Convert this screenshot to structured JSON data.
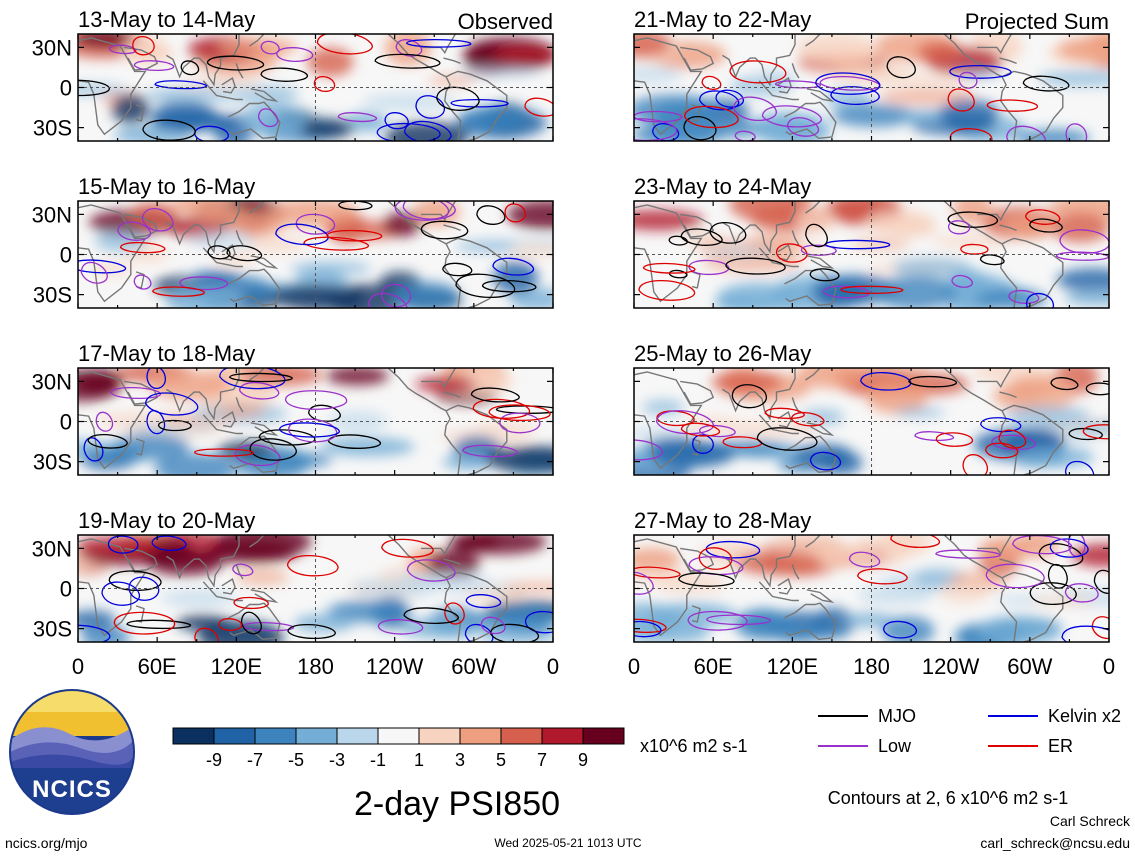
{
  "chart_data": {
    "type": "heatmap",
    "title": "2-day PSI850",
    "units": "x10^6 m2 s-1",
    "column_labels": [
      "Observed",
      "Projected Sum"
    ],
    "panels": [
      {
        "title": "13-May to 14-May",
        "group": "Observed"
      },
      {
        "title": "15-May to 16-May",
        "group": "Observed"
      },
      {
        "title": "17-May to 18-May",
        "group": "Observed"
      },
      {
        "title": "19-May to 20-May",
        "group": "Observed"
      },
      {
        "title": "21-May to 22-May",
        "group": "Projected Sum"
      },
      {
        "title": "23-May to 24-May",
        "group": "Projected Sum"
      },
      {
        "title": "25-May to 26-May",
        "group": "Projected Sum"
      },
      {
        "title": "27-May to 28-May",
        "group": "Projected Sum"
      }
    ],
    "lat_ticks": [
      "30N",
      "0",
      "30S"
    ],
    "lon_ticks": [
      "0",
      "60E",
      "120E",
      "180",
      "120W",
      "60W",
      "0"
    ],
    "lat_range": [
      -40,
      40
    ],
    "lon_range": [
      0,
      360
    ],
    "colorbar": {
      "tick_labels": [
        "-9",
        "-7",
        "-5",
        "-3",
        "-1",
        "1",
        "3",
        "5",
        "7",
        "9"
      ],
      "colors": [
        "#0b2f5e",
        "#1f63a6",
        "#3d84be",
        "#74aed6",
        "#b9d6ea",
        "#f7f7f7",
        "#f7d3c0",
        "#ee9f80",
        "#d6604d",
        "#b2182b",
        "#67001f"
      ]
    },
    "legend": [
      {
        "label": "MJO",
        "color": "#000000"
      },
      {
        "label": "Kelvin x2",
        "color": "#0000dd"
      },
      {
        "label": "Low",
        "color": "#9932cc"
      },
      {
        "label": "ER",
        "color": "#dd0000"
      }
    ],
    "contour_note": "Contours at 2, 6 x10^6 m2 s-1"
  },
  "footer": {
    "website": "ncics.org/mjo",
    "timestamp": "Wed 2025-05-21 1013 UTC",
    "author": "Carl Schreck",
    "email": "carl_schreck@ncsu.edu"
  },
  "logo": {
    "text": "NCICS"
  }
}
